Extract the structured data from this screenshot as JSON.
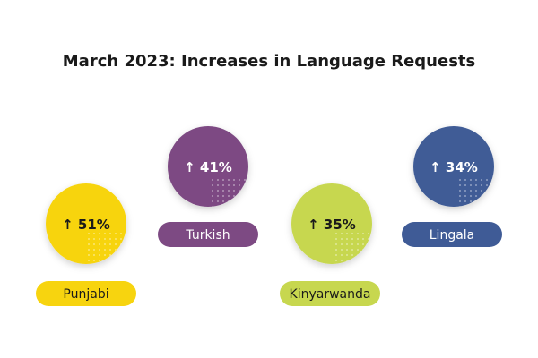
{
  "chart_data": {
    "type": "bubble",
    "title": "March 2023: Increases in Language Requests",
    "arrow_symbol": "↑",
    "unit": "%",
    "items": [
      {
        "language": "Punjabi",
        "change": 51,
        "color": "#f7d40f",
        "value_text_color": "#1a1a1a"
      },
      {
        "language": "Turkish",
        "change": 41,
        "color": "#7d4a83",
        "value_text_color": "#ffffff"
      },
      {
        "language": "Kinyarwanda",
        "change": 35,
        "color": "#c7d74f",
        "value_text_color": "#1a1a1a"
      },
      {
        "language": "Lingala",
        "change": 34,
        "color": "#3f5b96",
        "value_text_color": "#ffffff"
      }
    ]
  }
}
